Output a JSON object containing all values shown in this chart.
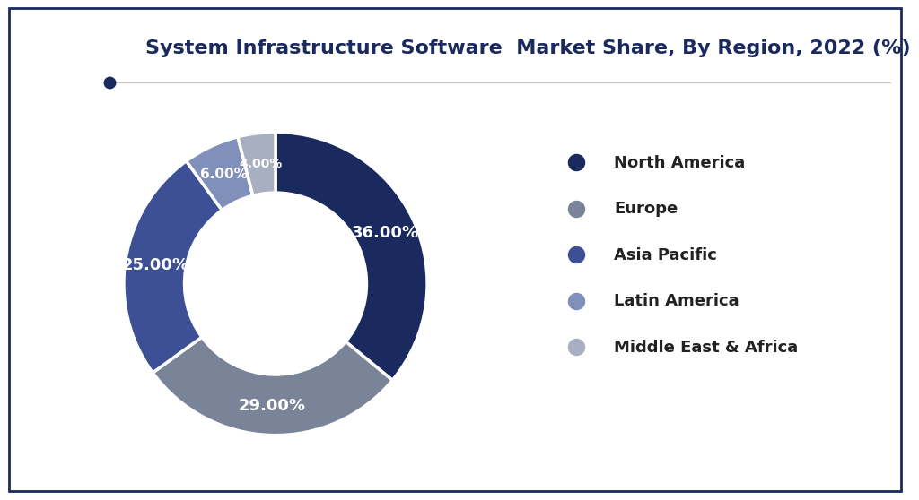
{
  "title": "System Infrastructure Software  Market Share, By Region, 2022 (%)",
  "labels": [
    "North America",
    "Europe",
    "Asia Pacific",
    "Latin America",
    "Middle East & Africa"
  ],
  "values": [
    36.0,
    29.0,
    25.0,
    6.0,
    4.0
  ],
  "colors": [
    "#1b2a5e",
    "#7a8499",
    "#3d5096",
    "#8090bb",
    "#a8afc0"
  ],
  "pct_labels": [
    "36.00%",
    "29.00%",
    "25.00%",
    "6.00%",
    "4.00%"
  ],
  "background_color": "#ffffff",
  "title_color": "#1b2a5e",
  "title_fontsize": 16,
  "legend_fontsize": 13,
  "pct_fontsize": 13,
  "donut_width": 0.4,
  "startangle": 90
}
